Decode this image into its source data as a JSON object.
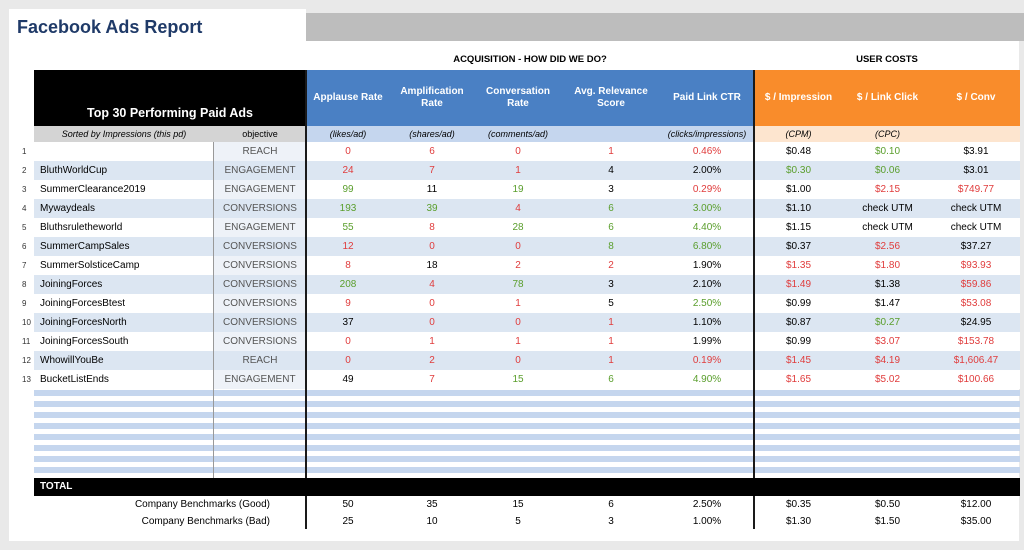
{
  "title": "Facebook Ads Report",
  "sections": {
    "acquisition": "ACQUISITION - HOW DID WE DO?",
    "user_costs": "USER COSTS"
  },
  "left_header": {
    "title": "Top 30 Performing Paid Ads",
    "sort_note": "Sorted by Impressions (this pd)",
    "objective_label": "objective"
  },
  "columns": [
    {
      "label": "Applause Rate",
      "unit": "(likes/ad)"
    },
    {
      "label": "Amplification Rate",
      "unit": "(shares/ad)"
    },
    {
      "label": "Conversation Rate",
      "unit": "(comments/ad)"
    },
    {
      "label": "Avg. Relevance Score",
      "unit": ""
    },
    {
      "label": "Paid Link CTR",
      "unit": "(clicks/impressions)"
    },
    {
      "label": "$ / Impression",
      "unit": "(CPM)"
    },
    {
      "label": "$ / Link Click",
      "unit": "(CPC)"
    },
    {
      "label": "$ / Conv",
      "unit": ""
    }
  ],
  "rows": [
    {
      "n": "1",
      "name": "",
      "objective": "REACH",
      "values": [
        [
          "0",
          "red"
        ],
        [
          "6",
          "red"
        ],
        [
          "0",
          "red"
        ],
        [
          "1",
          "red"
        ],
        [
          "0.46%",
          "red"
        ],
        [
          "$0.48",
          "black"
        ],
        [
          "$0.10",
          "green"
        ],
        [
          "$3.91",
          "black"
        ]
      ]
    },
    {
      "n": "2",
      "name": "BluthWorldCup",
      "objective": "ENGAGEMENT",
      "values": [
        [
          "24",
          "red"
        ],
        [
          "7",
          "red"
        ],
        [
          "1",
          "red"
        ],
        [
          "4",
          "black"
        ],
        [
          "2.00%",
          "black"
        ],
        [
          "$0.30",
          "green"
        ],
        [
          "$0.06",
          "green"
        ],
        [
          "$3.01",
          "black"
        ]
      ]
    },
    {
      "n": "3",
      "name": "SummerClearance2019",
      "objective": "ENGAGEMENT",
      "values": [
        [
          "99",
          "green"
        ],
        [
          "11",
          "black"
        ],
        [
          "19",
          "green"
        ],
        [
          "3",
          "black"
        ],
        [
          "0.29%",
          "red"
        ],
        [
          "$1.00",
          "black"
        ],
        [
          "$2.15",
          "red"
        ],
        [
          "$749.77",
          "red"
        ]
      ]
    },
    {
      "n": "4",
      "name": "Mywaydeals",
      "objective": "CONVERSIONS",
      "values": [
        [
          "193",
          "green"
        ],
        [
          "39",
          "green"
        ],
        [
          "4",
          "red"
        ],
        [
          "6",
          "green"
        ],
        [
          "3.00%",
          "green"
        ],
        [
          "$1.10",
          "black"
        ],
        [
          "check UTM",
          "black"
        ],
        [
          "check UTM",
          "black"
        ]
      ]
    },
    {
      "n": "5",
      "name": "Bluthsruletheworld",
      "objective": "ENGAGEMENT",
      "values": [
        [
          "55",
          "green"
        ],
        [
          "8",
          "red"
        ],
        [
          "28",
          "green"
        ],
        [
          "6",
          "green"
        ],
        [
          "4.40%",
          "green"
        ],
        [
          "$1.15",
          "black"
        ],
        [
          "check UTM",
          "black"
        ],
        [
          "check UTM",
          "black"
        ]
      ]
    },
    {
      "n": "6",
      "name": "SummerCampSales",
      "objective": "CONVERSIONS",
      "values": [
        [
          "12",
          "red"
        ],
        [
          "0",
          "red"
        ],
        [
          "0",
          "red"
        ],
        [
          "8",
          "green"
        ],
        [
          "6.80%",
          "green"
        ],
        [
          "$0.37",
          "black"
        ],
        [
          "$2.56",
          "red"
        ],
        [
          "$37.27",
          "black"
        ]
      ]
    },
    {
      "n": "7",
      "name": "SummerSolsticeCamp",
      "objective": "CONVERSIONS",
      "values": [
        [
          "8",
          "red"
        ],
        [
          "18",
          "black"
        ],
        [
          "2",
          "red"
        ],
        [
          "2",
          "red"
        ],
        [
          "1.90%",
          "black"
        ],
        [
          "$1.35",
          "red"
        ],
        [
          "$1.80",
          "red"
        ],
        [
          "$93.93",
          "red"
        ]
      ]
    },
    {
      "n": "8",
      "name": "JoiningForces",
      "objective": "CONVERSIONS",
      "values": [
        [
          "208",
          "green"
        ],
        [
          "4",
          "red"
        ],
        [
          "78",
          "green"
        ],
        [
          "3",
          "black"
        ],
        [
          "2.10%",
          "black"
        ],
        [
          "$1.49",
          "red"
        ],
        [
          "$1.38",
          "black"
        ],
        [
          "$59.86",
          "red"
        ]
      ]
    },
    {
      "n": "9",
      "name": "JoiningForcesBtest",
      "objective": "CONVERSIONS",
      "values": [
        [
          "9",
          "red"
        ],
        [
          "0",
          "red"
        ],
        [
          "1",
          "red"
        ],
        [
          "5",
          "black"
        ],
        [
          "2.50%",
          "green"
        ],
        [
          "$0.99",
          "black"
        ],
        [
          "$1.47",
          "black"
        ],
        [
          "$53.08",
          "red"
        ]
      ]
    },
    {
      "n": "10",
      "name": "JoiningForcesNorth",
      "objective": "CONVERSIONS",
      "values": [
        [
          "37",
          "black"
        ],
        [
          "0",
          "red"
        ],
        [
          "0",
          "red"
        ],
        [
          "1",
          "red"
        ],
        [
          "1.10%",
          "black"
        ],
        [
          "$0.87",
          "black"
        ],
        [
          "$0.27",
          "green"
        ],
        [
          "$24.95",
          "black"
        ]
      ]
    },
    {
      "n": "11",
      "name": "JoiningForcesSouth",
      "objective": "CONVERSIONS",
      "values": [
        [
          "0",
          "red"
        ],
        [
          "1",
          "red"
        ],
        [
          "1",
          "red"
        ],
        [
          "1",
          "red"
        ],
        [
          "1.99%",
          "black"
        ],
        [
          "$0.99",
          "black"
        ],
        [
          "$3.07",
          "red"
        ],
        [
          "$153.78",
          "red"
        ]
      ]
    },
    {
      "n": "12",
      "name": "WhowillYouBe",
      "objective": "REACH",
      "values": [
        [
          "0",
          "red"
        ],
        [
          "2",
          "red"
        ],
        [
          "0",
          "red"
        ],
        [
          "1",
          "red"
        ],
        [
          "0.19%",
          "red"
        ],
        [
          "$1.45",
          "red"
        ],
        [
          "$4.19",
          "red"
        ],
        [
          "$1,606.47",
          "red"
        ]
      ]
    },
    {
      "n": "13",
      "name": "BucketListEnds",
      "objective": "ENGAGEMENT",
      "values": [
        [
          "49",
          "black"
        ],
        [
          "7",
          "red"
        ],
        [
          "15",
          "green"
        ],
        [
          "6",
          "green"
        ],
        [
          "4.90%",
          "green"
        ],
        [
          "$1.65",
          "red"
        ],
        [
          "$5.02",
          "red"
        ],
        [
          "$100.66",
          "red"
        ]
      ]
    }
  ],
  "total_label": "TOTAL",
  "benchmarks": [
    {
      "label": "Company Benchmarks (Good)",
      "values": [
        "50",
        "35",
        "15",
        "6",
        "2.50%",
        "$0.35",
        "$0.50",
        "$12.00"
      ]
    },
    {
      "label": "Company Benchmarks (Bad)",
      "values": [
        "25",
        "10",
        "5",
        "3",
        "1.00%",
        "$1.30",
        "$1.50",
        "$35.00"
      ]
    }
  ],
  "colors": {
    "red": "#e03c3c",
    "green": "#5a9e2c",
    "header_blue": "#4a80c4",
    "header_orange": "#f98c2b"
  }
}
